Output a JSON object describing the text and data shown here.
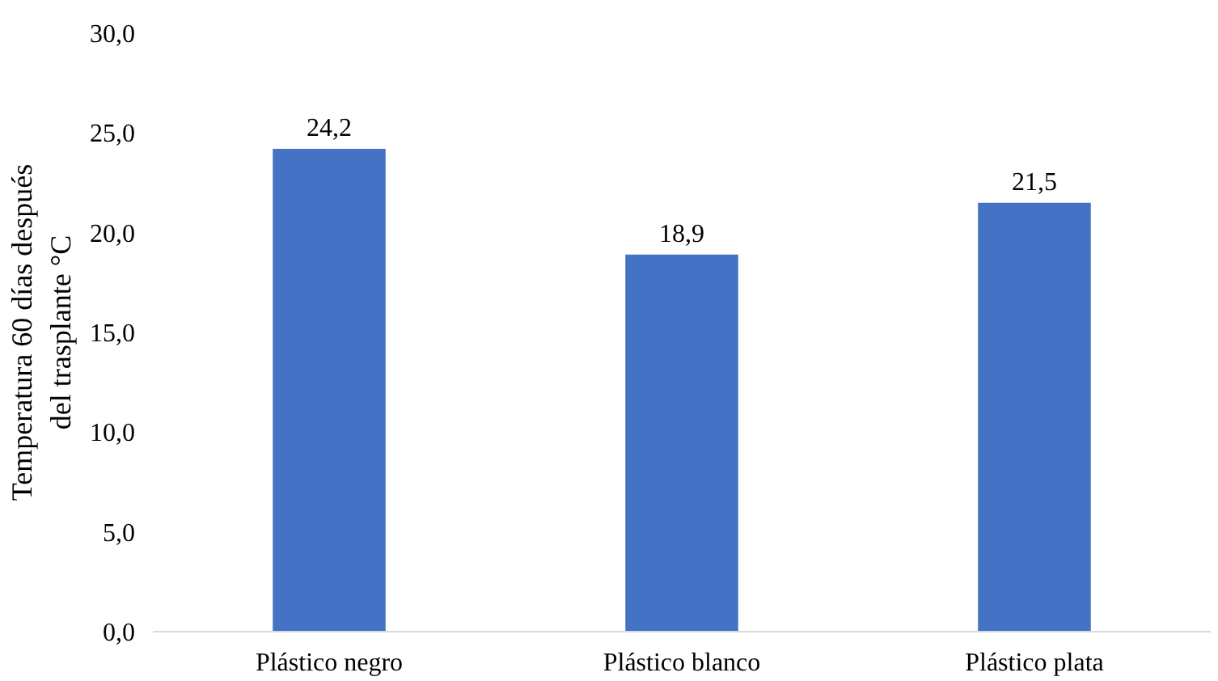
{
  "chart_data": {
    "type": "bar",
    "ylabel": "Temperatura 60 días después\ndel trasplante °C",
    "categories": [
      "Plástico negro",
      "Plástico blanco",
      "Plástico plata"
    ],
    "values": [
      24.2,
      18.9,
      21.5
    ],
    "color": "#4472c4",
    "value_labels": [
      "24,2",
      "18,9",
      "21,5"
    ],
    "ylim": [
      0,
      30
    ],
    "yticks": [
      {
        "value": 0,
        "label": "0,0"
      },
      {
        "value": 5,
        "label": "5,0"
      },
      {
        "value": 10,
        "label": "10,0"
      },
      {
        "value": 15,
        "label": "15,0"
      },
      {
        "value": 20,
        "label": "20,0"
      },
      {
        "value": 25,
        "label": "25,0"
      },
      {
        "value": 30,
        "label": "30,0"
      }
    ],
    "grid": false
  }
}
